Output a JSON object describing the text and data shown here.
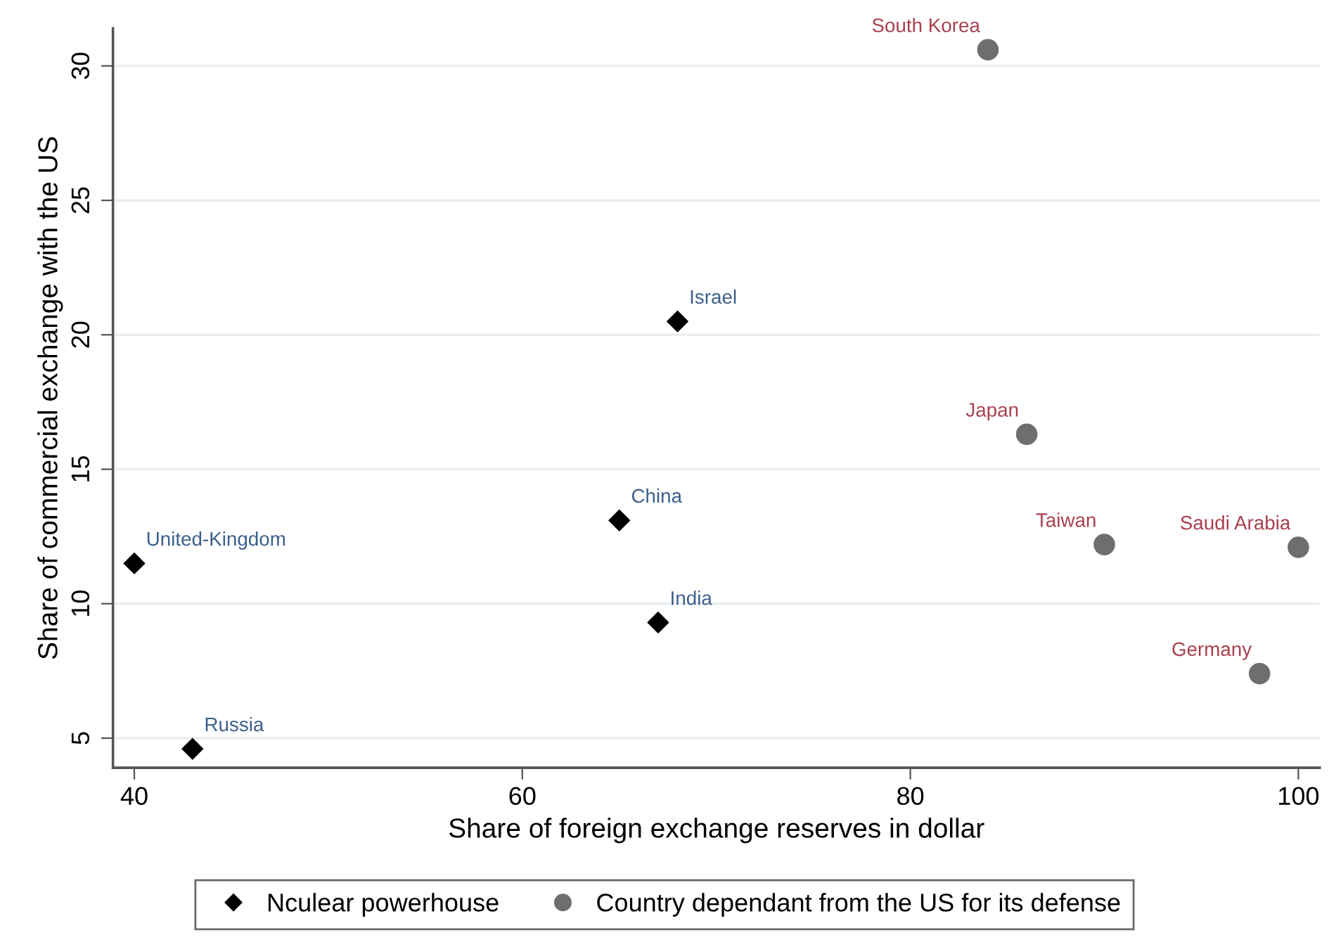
{
  "chart_data": {
    "type": "scatter",
    "xlabel": "Share of foreign exchange reserves in dollar",
    "ylabel": "Share of commercial exchange with the US",
    "xlim": [
      38.9,
      101.1
    ],
    "xticks": [
      40,
      60,
      80,
      100
    ],
    "ylim": [
      3.9,
      31.4
    ],
    "yticks": [
      5,
      10,
      15,
      20,
      25,
      30
    ],
    "grid": "y",
    "legend": "bottom",
    "series": [
      {
        "name": "Nculear powerhouse",
        "color": "#000000",
        "marker": "diamond",
        "x": [
          40,
          43,
          65,
          67,
          68
        ],
        "values": [
          11.5,
          4.6,
          13.1,
          9.3,
          20.5
        ]
      },
      {
        "name": "Country dependant from the US for its defense",
        "color": "#6e6e6e",
        "marker": "circle",
        "x": [
          84,
          86,
          90,
          100,
          98
        ],
        "values": [
          30.6,
          16.3,
          12.2,
          12.1,
          7.4
        ]
      }
    ],
    "annotations": [
      {
        "text": "United-Kingdom",
        "x": 40,
        "y": 11.5
      },
      {
        "text": "Russia",
        "x": 43,
        "y": 4.6
      },
      {
        "text": "China",
        "x": 65,
        "y": 13.1
      },
      {
        "text": "India",
        "x": 67,
        "y": 9.3
      },
      {
        "text": "Israel",
        "x": 68,
        "y": 20.5
      },
      {
        "text": "South Korea",
        "x": 84,
        "y": 30.6
      },
      {
        "text": "Japan",
        "x": 86,
        "y": 16.3
      },
      {
        "text": "Taiwan",
        "x": 90,
        "y": 12.2
      },
      {
        "text": "Saudi Arabia",
        "x": 100,
        "y": 12.1
      },
      {
        "text": "Germany",
        "x": 98,
        "y": 7.4
      }
    ]
  }
}
